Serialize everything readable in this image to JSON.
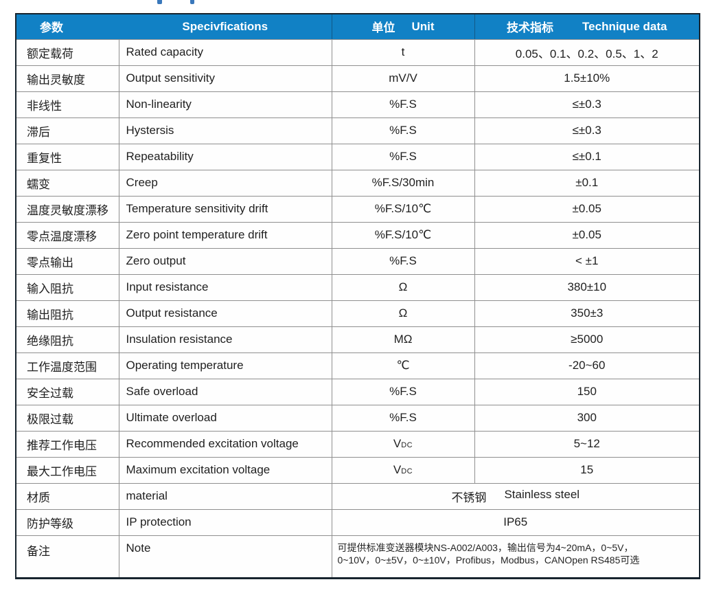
{
  "colors": {
    "header_bg": "#1181c5",
    "header_text": "#ffffff",
    "grid_line": "#8f8f8f",
    "outer_border": "#17242e",
    "body_text": "#1f1f1f"
  },
  "table": {
    "header": {
      "param_cn": "参数",
      "spec": "Specivfications",
      "unit_cn": "单位",
      "unit_en": "Unit",
      "tech_cn": "技术指标",
      "tech_en": "Technique data"
    },
    "rows": [
      {
        "cn": "额定载荷",
        "en": "Rated capacity",
        "unit": "t",
        "value": "0.05、0.1、0.2、0.5、1、2"
      },
      {
        "cn": "输出灵敏度",
        "en": "Output sensitivity",
        "unit": "mV/V",
        "value": "1.5±10%"
      },
      {
        "cn": "非线性",
        "en": "Non-linearity",
        "unit": "%F.S",
        "value": "≤±0.3"
      },
      {
        "cn": "滞后",
        "en": "Hystersis",
        "unit": "%F.S",
        "value": "≤±0.3"
      },
      {
        "cn": "重复性",
        "en": "Repeatability",
        "unit": "%F.S",
        "value": "≤±0.1"
      },
      {
        "cn": "蠕变",
        "en": "Creep",
        "unit": "%F.S/30min",
        "value": "±0.1"
      },
      {
        "cn": "温度灵敏度漂移",
        "en": "Temperature sensitivity drift",
        "unit": "%F.S/10℃",
        "value": "±0.05"
      },
      {
        "cn": "零点温度漂移",
        "en": "Zero point temperature drift",
        "unit": "%F.S/10℃",
        "value": "±0.05"
      },
      {
        "cn": "零点输出",
        "en": "Zero output",
        "unit": "%F.S",
        "value": "< ±1"
      },
      {
        "cn": "输入阻抗",
        "en": "Input resistance",
        "unit": "Ω",
        "value": "380±10"
      },
      {
        "cn": "输出阻抗",
        "en": "Output resistance",
        "unit": "Ω",
        "value": "350±3"
      },
      {
        "cn": "绝缘阻抗",
        "en": "Insulation resistance",
        "unit": "MΩ",
        "value": "≥5000"
      },
      {
        "cn": "工作温度范围",
        "en": "Operating temperature",
        "unit": "℃",
        "value": "-20~60"
      },
      {
        "cn": "安全过载",
        "en": "Safe overload",
        "unit": "%F.S",
        "value": "150"
      },
      {
        "cn": "极限过载",
        "en": "Ultimate overload",
        "unit": "%F.S",
        "value": "300"
      },
      {
        "cn": "推荐工作电压",
        "en": "Recommended excitation voltage",
        "unit": "V",
        "unit_sub": "DC",
        "value": "5~12"
      },
      {
        "cn": "最大工作电压",
        "en": "Maximum excitation voltage",
        "unit": "V",
        "unit_sub": "DC",
        "value": "15"
      },
      {
        "cn": "材质",
        "en": "material",
        "value_cn": "不锈钢",
        "value_en": "Stainless steel"
      },
      {
        "cn": "防护等级",
        "en": "IP protection",
        "value": "IP65"
      },
      {
        "cn": "备注",
        "en": "Note",
        "note_line1": "可提供标准变送器模块NS-A002/A003，输出信号为4~20mA，0~5V，",
        "note_line2": "0~10V，0~±5V，0~±10V，Profibus，Modbus，CANOpen RS485可选"
      }
    ]
  }
}
